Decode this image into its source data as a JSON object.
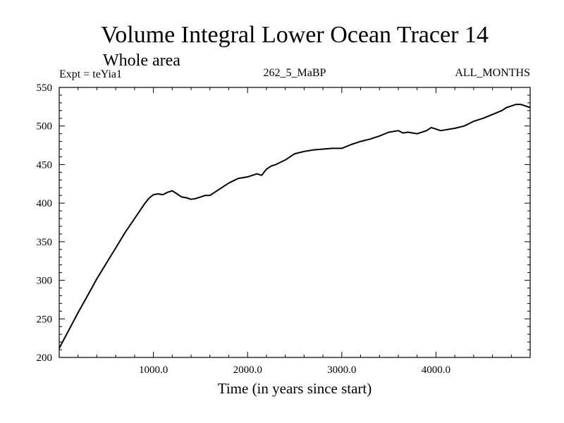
{
  "chart_data": {
    "type": "line",
    "title": "Volume Integral Lower Ocean Tracer 14",
    "subtitle": "Whole area",
    "annotations": {
      "left": "Expt = teYia1",
      "center": "262_5_MaBP",
      "right": "ALL_MONTHS"
    },
    "xlabel": "Time (in years since start)",
    "ylabel": "",
    "xlim": [
      0,
      5000
    ],
    "ylim": [
      200,
      550
    ],
    "xticks": [
      1000,
      2000,
      3000,
      4000
    ],
    "xtick_labels": [
      "1000.0",
      "2000.0",
      "3000.0",
      "4000.0"
    ],
    "yticks": [
      200,
      250,
      300,
      350,
      400,
      450,
      500,
      550
    ],
    "ytick_labels": [
      "200",
      "250",
      "300",
      "350",
      "400",
      "450",
      "500",
      "550"
    ],
    "grid": false,
    "series": [
      {
        "name": "Lower Ocean Tracer 14",
        "color": "#000000",
        "x": [
          0,
          100,
          200,
          300,
          400,
          500,
          600,
          700,
          800,
          900,
          950,
          1000,
          1050,
          1100,
          1150,
          1200,
          1250,
          1300,
          1350,
          1400,
          1450,
          1500,
          1550,
          1600,
          1700,
          1800,
          1900,
          2000,
          2050,
          2100,
          2150,
          2200,
          2250,
          2300,
          2400,
          2500,
          2600,
          2700,
          2800,
          2900,
          3000,
          3100,
          3200,
          3300,
          3400,
          3500,
          3600,
          3650,
          3700,
          3800,
          3900,
          3950,
          4000,
          4050,
          4100,
          4200,
          4300,
          4400,
          4500,
          4600,
          4700,
          4750,
          4800,
          4850,
          4900,
          4950,
          5000
        ],
        "values": [
          212,
          235,
          258,
          280,
          302,
          322,
          342,
          362,
          380,
          398,
          406,
          411,
          412,
          411,
          414,
          416,
          412,
          408,
          407,
          405,
          406,
          408,
          410,
          410,
          418,
          426,
          432,
          434,
          436,
          438,
          436,
          444,
          448,
          450,
          456,
          464,
          467,
          469,
          470,
          471,
          471,
          476,
          480,
          483,
          487,
          492,
          494,
          491,
          492,
          490,
          494,
          498,
          496,
          494,
          495,
          497,
          500,
          506,
          510,
          515,
          520,
          524,
          526,
          528,
          528,
          526,
          524
        ]
      }
    ]
  }
}
